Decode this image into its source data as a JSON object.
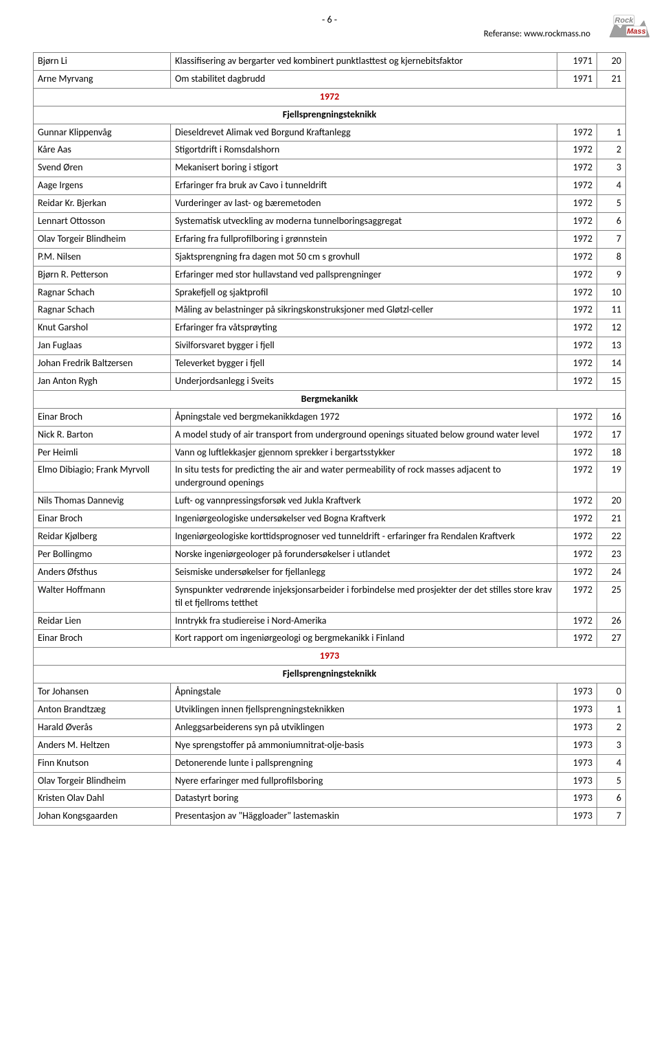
{
  "header": {
    "page_number": "- 6 -",
    "reference": "Referanse: www.rockmass.no",
    "logo": {
      "rock_text": "Rock",
      "mass_text": "Mass",
      "gray": "#a0a0a0",
      "red": "#b22222",
      "logo_bg": "#ffffff"
    }
  },
  "table": {
    "colors": {
      "border": "#808080",
      "year_sep_text": "#c00000",
      "text": "#000000",
      "bg": "#ffffff"
    },
    "columns": [
      "author",
      "title",
      "year",
      "num"
    ],
    "column_align": {
      "author": "left",
      "title": "left",
      "year": "right",
      "num": "right"
    },
    "font_size_pt": 11,
    "rows": [
      {
        "kind": "row",
        "author": "Bjørn Li",
        "title": "Klassifisering av bergarter ved kombinert punktlasttest og kjernebitsfaktor",
        "year": "1971",
        "num": "20"
      },
      {
        "kind": "row",
        "author": "Arne Myrvang",
        "title": "Om stabilitet dagbrudd",
        "year": "1971",
        "num": "21"
      },
      {
        "kind": "year",
        "label": "1972"
      },
      {
        "kind": "section",
        "label": "Fjellsprengningsteknikk"
      },
      {
        "kind": "row",
        "author": "Gunnar Klippenvåg",
        "title": "Dieseldrevet Alimak ved Borgund Kraftanlegg",
        "year": "1972",
        "num": "1"
      },
      {
        "kind": "row",
        "author": "Kåre Aas",
        "title": "Stigortdrift i Romsdalshorn",
        "year": "1972",
        "num": "2"
      },
      {
        "kind": "row",
        "author": "Svend Øren",
        "title": "Mekanisert boring i stigort",
        "year": "1972",
        "num": "3"
      },
      {
        "kind": "row",
        "author": "Aage Irgens",
        "title": "Erfaringer fra bruk av Cavo i tunneldrift",
        "year": "1972",
        "num": "4"
      },
      {
        "kind": "row",
        "author": "Reidar Kr. Bjerkan",
        "title": "Vurderinger av last- og bæremetoden",
        "year": "1972",
        "num": "5"
      },
      {
        "kind": "row",
        "author": "Lennart Ottosson",
        "title": "Systematisk utveckling av moderna tunnelboringsaggregat",
        "year": "1972",
        "num": "6"
      },
      {
        "kind": "row",
        "author": "Olav Torgeir Blindheim",
        "title": "Erfaring fra fullprofilboring i grønnstein",
        "year": "1972",
        "num": "7"
      },
      {
        "kind": "row",
        "author": "P.M. Nilsen",
        "title": "Sjaktsprengning fra dagen mot 50 cm s grovhull",
        "year": "1972",
        "num": "8"
      },
      {
        "kind": "row",
        "author": "Bjørn R. Petterson",
        "title": "Erfaringer med stor hullavstand ved pallsprengninger",
        "year": "1972",
        "num": "9"
      },
      {
        "kind": "row",
        "author": "Ragnar Schach",
        "title": "Sprakefjell og sjaktprofil",
        "year": "1972",
        "num": "10"
      },
      {
        "kind": "row",
        "author": "Ragnar Schach",
        "title": "Måling av belastninger på sikringskonstruksjoner med Gløtzl-celler",
        "year": "1972",
        "num": "11"
      },
      {
        "kind": "row",
        "author": "Knut Garshol",
        "title": "Erfaringer fra våtsprøyting",
        "year": "1972",
        "num": "12"
      },
      {
        "kind": "row",
        "author": "Jan Fuglaas",
        "title": "Sivilforsvaret bygger i fjell",
        "year": "1972",
        "num": "13"
      },
      {
        "kind": "row",
        "author": "Johan Fredrik Baltzersen",
        "title": "Televerket bygger i fjell",
        "year": "1972",
        "num": "14"
      },
      {
        "kind": "row",
        "author": "Jan Anton Rygh",
        "title": "Underjordsanlegg i Sveits",
        "year": "1972",
        "num": "15"
      },
      {
        "kind": "section",
        "label": "Bergmekanikk"
      },
      {
        "kind": "row",
        "author": "Einar Broch",
        "title": "Åpningstale ved bergmekanikkdagen 1972",
        "year": "1972",
        "num": "16"
      },
      {
        "kind": "row",
        "author": "Nick R. Barton",
        "title": "A model study of air transport from underground openings situated below ground water level",
        "year": "1972",
        "num": "17"
      },
      {
        "kind": "row",
        "author": "Per Heimli",
        "title": "Vann og luftlekkasjer gjennom sprekker i bergartsstykker",
        "year": "1972",
        "num": "18"
      },
      {
        "kind": "row",
        "author": "Elmo Dibiagio; Frank Myrvoll",
        "title": "In situ tests for predicting the air and water permeability of rock masses adjacent to underground openings",
        "year": "1972",
        "num": "19"
      },
      {
        "kind": "row",
        "author": "Nils Thomas Dannevig",
        "title": "Luft- og vannpressingsforsøk ved Jukla Kraftverk",
        "year": "1972",
        "num": "20"
      },
      {
        "kind": "row",
        "author": "Einar Broch",
        "title": "Ingeniørgeologiske undersøkelser ved Bogna Kraftverk",
        "year": "1972",
        "num": "21"
      },
      {
        "kind": "row",
        "author": "Reidar Kjølberg",
        "title": "Ingeniørgeologiske korttidsprognoser ved tunneldrift - erfaringer fra Rendalen Kraftverk",
        "year": "1972",
        "num": "22"
      },
      {
        "kind": "row",
        "author": "Per Bollingmo",
        "title": "Norske ingeniørgeologer på forundersøkelser i utlandet",
        "year": "1972",
        "num": "23"
      },
      {
        "kind": "row",
        "author": "Anders Øfsthus",
        "title": "Seismiske undersøkelser for fjellanlegg",
        "year": "1972",
        "num": "24"
      },
      {
        "kind": "row",
        "author": "Walter Hoffmann",
        "title": "Synspunkter vedrørende injeksjonsarbeider i forbindelse med prosjekter der det stilles store krav til et fjellroms tetthet",
        "year": "1972",
        "num": "25"
      },
      {
        "kind": "row",
        "author": "Reidar Lien",
        "title": "Inntrykk fra studiereise i Nord-Amerika",
        "year": "1972",
        "num": "26"
      },
      {
        "kind": "row",
        "author": "Einar Broch",
        "title": "Kort rapport om ingeniørgeologi og bergmekanikk i Finland",
        "year": "1972",
        "num": "27"
      },
      {
        "kind": "year",
        "label": "1973"
      },
      {
        "kind": "section",
        "label": "Fjellsprengningsteknikk"
      },
      {
        "kind": "row",
        "author": "Tor Johansen",
        "title": "Åpningstale",
        "year": "1973",
        "num": "0"
      },
      {
        "kind": "row",
        "author": "Anton Brandtzæg",
        "title": "Utviklingen innen fjellsprengningsteknikken",
        "year": "1973",
        "num": "1"
      },
      {
        "kind": "row",
        "author": "Harald Øverås",
        "title": "Anleggsarbeiderens syn på utviklingen",
        "year": "1973",
        "num": "2"
      },
      {
        "kind": "row",
        "author": "Anders M. Heltzen",
        "title": "Nye sprengstoffer på ammoniumnitrat-olje-basis",
        "year": "1973",
        "num": "3"
      },
      {
        "kind": "row",
        "author": "Finn Knutson",
        "title": "Detonerende lunte i pallsprengning",
        "year": "1973",
        "num": "4"
      },
      {
        "kind": "row",
        "author": "Olav Torgeir Blindheim",
        "title": "Nyere erfaringer med fullprofilsboring",
        "year": "1973",
        "num": "5"
      },
      {
        "kind": "row",
        "author": "Kristen Olav Dahl",
        "title": "Datastyrt boring",
        "year": "1973",
        "num": "6"
      },
      {
        "kind": "row",
        "author": "Johan Kongsgaarden",
        "title": "Presentasjon av \"Häggloader\" lastemaskin",
        "year": "1973",
        "num": "7"
      }
    ]
  }
}
